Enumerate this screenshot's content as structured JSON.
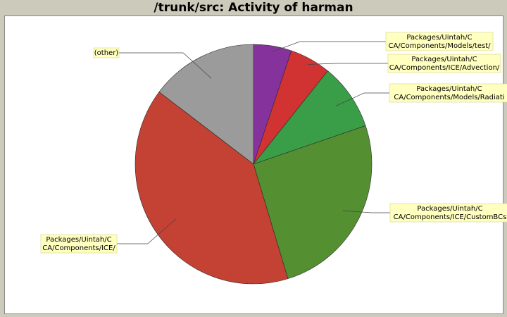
{
  "chart_data": {
    "type": "pie",
    "title": "/trunk/src: Activity of harman",
    "slices": [
      {
        "label": [
          "Packages/Uintah/C",
          "CA/Components/Models/test/"
        ],
        "value": 5.2,
        "color": "#86329c"
      },
      {
        "label": [
          "Packages/Uintah/C",
          "CA/Components/ICE/Advection/"
        ],
        "value": 5.6,
        "color": "#d13333"
      },
      {
        "label": [
          "Packages/Uintah/C",
          "CA/Components/Models/Radiati"
        ],
        "value": 9.0,
        "color": "#3a9d47"
      },
      {
        "label": [
          "Packages/Uintah/C",
          "CA/Components/ICE/CustomBCs"
        ],
        "value": 25.5,
        "color": "#548f32"
      },
      {
        "label": [
          "Packages/Uintah/C",
          "CA/Components/ICE/"
        ],
        "value": 40.0,
        "color": "#c34234"
      },
      {
        "label": [
          "(other)"
        ],
        "value": 14.7,
        "color": "#9b9b9b"
      }
    ],
    "legend": "callout-labels"
  }
}
